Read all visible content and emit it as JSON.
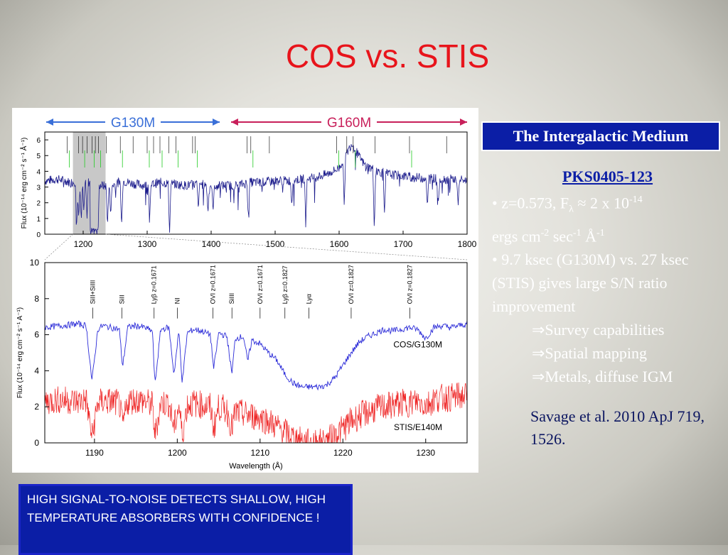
{
  "slide": {
    "title": "COS vs. STIS",
    "box_title": "The Intergalactic Medium",
    "notes_head": "PKS0405-123",
    "notes": [
      "• z=0.573, F",
      "λ",
      " ≈ 2 x 10",
      "-14",
      "ergs cm",
      "-2",
      " sec",
      "-1",
      " Å",
      "-1",
      "• 9.7 ksec (G130M) vs. 27 ksec (STIS) gives large S/N ratio improvement",
      "⇒Survey capabilities",
      "⇒Spatial mapping",
      "⇒Metals, diffuse IGM"
    ],
    "citation": "Savage et al. 2010 ApJ 719, 1526.",
    "bottom_box": "HIGH SIGNAL-TO-NOISE DETECTS SHALLOW, HIGH TEMPERATURE ABSORBERS WITH CONFIDENCE !",
    "colors": {
      "title": "#e8141b",
      "box_bg": "#0b1ea6",
      "cos_line": "#2b2bd8",
      "stis_line": "#ee2222",
      "overview_line": "#1c1c8c",
      "grating_blue": "#3a6fd8",
      "grating_red": "#c81f5a",
      "id_green": "#22cc22"
    }
  },
  "chart_data": [
    {
      "type": "line",
      "panel": "top",
      "xlabel": "",
      "ylabel": "Flux (10⁻¹⁴ erg cm⁻² s⁻¹ Å⁻¹)",
      "xlim": [
        1140,
        1800
      ],
      "ylim": [
        0,
        6.5
      ],
      "xticks": [
        "1200",
        "1300",
        "1400",
        "1500",
        "1600",
        "1700",
        "1800"
      ],
      "yticks": [
        "0",
        "1",
        "2",
        "3",
        "4",
        "5",
        "6"
      ],
      "gratings": [
        {
          "name": "G130M",
          "from": 1140,
          "to": 1420
        },
        {
          "name": "G160M",
          "from": 1420,
          "to": 1800
        }
      ],
      "highlight": [
        1184,
        1235
      ],
      "series": [
        {
          "name": "",
          "x": [
            1140,
            1160,
            1180,
            1200,
            1220,
            1240,
            1260,
            1280,
            1300,
            1320,
            1340,
            1360,
            1380,
            1400,
            1420,
            1440,
            1460,
            1480,
            1500,
            1520,
            1540,
            1560,
            1580,
            1600,
            1610,
            1620,
            1630,
            1640,
            1660,
            1680,
            1700,
            1720,
            1740,
            1760,
            1780,
            1800
          ],
          "values": [
            3.4,
            3.5,
            3.3,
            3.4,
            3.2,
            3.0,
            3.4,
            3.2,
            3.1,
            3.3,
            3.2,
            3.1,
            3.2,
            3.1,
            3.1,
            3.1,
            3.3,
            3.3,
            3.4,
            3.4,
            3.5,
            3.6,
            3.8,
            4.2,
            5.0,
            5.8,
            5.0,
            4.4,
            4.0,
            3.8,
            3.7,
            3.6,
            3.6,
            3.5,
            3.5,
            3.4
          ]
        }
      ],
      "absorption": [
        {
          "x": 1190,
          "min": 0.6
        },
        {
          "x": 1193,
          "min": 1.0
        },
        {
          "x": 1197,
          "min": 0.8
        },
        {
          "x": 1201,
          "min": 1.4
        },
        {
          "x": 1206,
          "min": 1.0
        },
        {
          "x": 1214,
          "min": 0.0
        },
        {
          "x": 1217,
          "min": 0.0
        },
        {
          "x": 1219,
          "min": 0.0
        },
        {
          "x": 1223,
          "min": 0.1
        },
        {
          "x": 1238,
          "min": 0.5
        },
        {
          "x": 1243,
          "min": 1.2
        },
        {
          "x": 1260,
          "min": 0.4
        },
        {
          "x": 1304,
          "min": 1.1
        },
        {
          "x": 1335,
          "min": 0.0
        },
        {
          "x": 1380,
          "min": 1.6
        },
        {
          "x": 1395,
          "min": 1.3
        },
        {
          "x": 1403,
          "min": 1.4
        },
        {
          "x": 1458,
          "min": 1.1
        },
        {
          "x": 1526,
          "min": 1.8
        },
        {
          "x": 1548,
          "min": 0.9
        },
        {
          "x": 1608,
          "min": 1.7
        },
        {
          "x": 1655,
          "min": 0.2
        },
        {
          "x": 1671,
          "min": 1.3
        },
        {
          "x": 1738,
          "min": 1.7
        },
        {
          "x": 1755,
          "min": 1.9
        },
        {
          "x": 1786,
          "min": 1.8
        }
      ]
    },
    {
      "type": "line",
      "panel": "bottom",
      "xlabel": "Wavelength (Å)",
      "ylabel": "Flux (10⁻¹⁴ erg cm⁻² s⁻¹ A⁻¹)",
      "xlim": [
        1184,
        1235
      ],
      "ylim": [
        0,
        10
      ],
      "xticks": [
        "1190",
        "1200",
        "1210",
        "1220",
        "1230"
      ],
      "yticks": [
        "0",
        "2",
        "4",
        "6",
        "8",
        "10"
      ],
      "line_ids": [
        "SiII+SiIII",
        "SiII",
        "Lyβ z=0.1671",
        "NI",
        "OVI z=0.1671",
        "SiIII",
        "OVI z=0.1671",
        "Lyβ z=0.1827",
        "Lyα",
        "OVI z=0.1827",
        "OVI z=0.1827"
      ],
      "series": [
        {
          "name": "COS/G130M",
          "x": [
            1184,
            1186,
            1188,
            1189,
            1189.7,
            1190.4,
            1191,
            1192,
            1193,
            1193.4,
            1194,
            1195,
            1196,
            1197,
            1197.3,
            1198,
            1199,
            1199.6,
            1200.2,
            1200.6,
            1201.2,
            1202,
            1203,
            1204,
            1204.4,
            1205,
            1206,
            1206.6,
            1207,
            1208,
            1208.5,
            1209,
            1210,
            1211,
            1212,
            1213,
            1214,
            1215,
            1216,
            1217,
            1218,
            1219,
            1220,
            1221,
            1222,
            1223,
            1224,
            1225,
            1226,
            1227,
            1228,
            1229,
            1230,
            1231,
            1232,
            1233,
            1234,
            1235
          ],
          "values": [
            6.4,
            6.5,
            6.6,
            6.5,
            3.4,
            6.3,
            6.5,
            6.4,
            6.3,
            4.2,
            6.4,
            6.5,
            6.4,
            6.2,
            3.2,
            6.3,
            6.4,
            3.8,
            6.2,
            3.3,
            6.1,
            6.3,
            6.2,
            6.0,
            4.1,
            6.1,
            5.9,
            3.8,
            5.8,
            5.9,
            4.5,
            5.7,
            5.5,
            5.0,
            4.6,
            3.8,
            3.3,
            3.1,
            3.1,
            3.1,
            3.2,
            3.6,
            4.3,
            5.0,
            5.6,
            5.9,
            6.1,
            6.3,
            6.2,
            6.3,
            6.4,
            6.3,
            5.8,
            6.4,
            6.5,
            6.4,
            6.5,
            6.6
          ]
        },
        {
          "name": "STIS/E140M",
          "x": [
            1184,
            1186,
            1188,
            1189,
            1189.7,
            1190.4,
            1191,
            1192,
            1193,
            1193.4,
            1194,
            1195,
            1196,
            1197,
            1197.3,
            1198,
            1199,
            1199.6,
            1200.2,
            1200.6,
            1201.2,
            1202,
            1203,
            1204,
            1204.4,
            1205,
            1206,
            1206.6,
            1207,
            1208,
            1209,
            1210,
            1211,
            1212,
            1213,
            1214,
            1215,
            1216,
            1217,
            1218,
            1219,
            1220,
            1221,
            1222,
            1223,
            1224,
            1225,
            1226,
            1227,
            1228,
            1229,
            1230,
            1231,
            1232,
            1233,
            1234,
            1235
          ],
          "values": [
            2.3,
            2.4,
            2.3,
            2.4,
            0.3,
            2.2,
            2.3,
            2.3,
            2.2,
            0.9,
            2.3,
            2.4,
            2.3,
            2.1,
            0.4,
            2.2,
            2.2,
            0.8,
            2.1,
            0.4,
            2.1,
            2.2,
            2.1,
            2.0,
            0.8,
            2.0,
            1.8,
            0.8,
            1.7,
            1.6,
            1.5,
            1.4,
            1.2,
            0.9,
            0.6,
            0.3,
            0.1,
            0.0,
            0.0,
            0.1,
            0.4,
            0.8,
            1.2,
            1.5,
            1.7,
            1.9,
            2.0,
            2.1,
            2.2,
            2.2,
            2.3,
            2.1,
            2.4,
            2.5,
            2.5,
            2.6,
            2.6
          ]
        }
      ]
    }
  ]
}
